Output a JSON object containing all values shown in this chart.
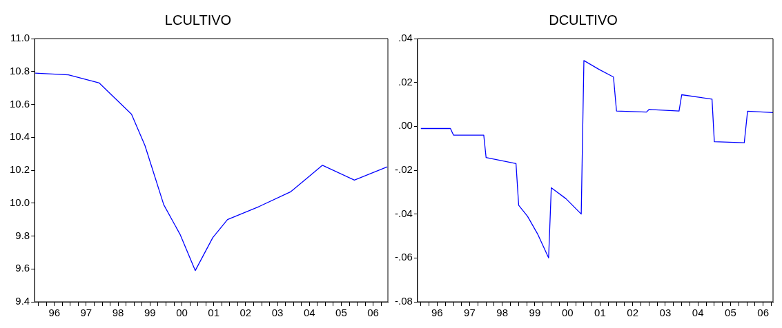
{
  "chart_data": [
    {
      "type": "line",
      "title": "LCULTIVO",
      "marker": "none",
      "series": [
        {
          "color": "#0000ff",
          "x": [
            "1995-11-25",
            "1996-12-10",
            "1997-11-28",
            "1998-12-02",
            "1999-05-05",
            "1999-12-06",
            "2000-06-10",
            "2000-12-02",
            "2001-06-20",
            "2001-12-06",
            "2002-12-06",
            "2003-12-02",
            "2004-11-28",
            "2005-11-28",
            "2006-12-10"
          ],
          "values": [
            10.79,
            10.78,
            10.73,
            10.54,
            10.35,
            9.99,
            9.81,
            9.59,
            9.79,
            9.9,
            9.98,
            10.07,
            10.23,
            10.14,
            10.22
          ]
        }
      ],
      "xlim": [
        "1995-11-18",
        "2006-12-17"
      ],
      "xticks": [
        {
          "value": "1996-01",
          "label": null
        },
        {
          "value": "1996-04",
          "label": null
        },
        {
          "value": "1996-07",
          "label": "96"
        },
        {
          "value": "1996-10",
          "label": null
        },
        {
          "value": "1997-01",
          "label": null
        },
        {
          "value": "1997-04",
          "label": null
        },
        {
          "value": "1997-07",
          "label": "97"
        },
        {
          "value": "1997-10",
          "label": null
        },
        {
          "value": "1998-01",
          "label": null
        },
        {
          "value": "1998-04",
          "label": null
        },
        {
          "value": "1998-07",
          "label": "98"
        },
        {
          "value": "1998-10",
          "label": null
        },
        {
          "value": "1999-01",
          "label": null
        },
        {
          "value": "1999-04",
          "label": null
        },
        {
          "value": "1999-07",
          "label": "99"
        },
        {
          "value": "1999-10",
          "label": null
        },
        {
          "value": "2000-01",
          "label": null
        },
        {
          "value": "2000-04",
          "label": null
        },
        {
          "value": "2000-07",
          "label": "00"
        },
        {
          "value": "2000-10",
          "label": null
        },
        {
          "value": "2001-01",
          "label": null
        },
        {
          "value": "2001-04",
          "label": null
        },
        {
          "value": "2001-07",
          "label": "01"
        },
        {
          "value": "2001-10",
          "label": null
        },
        {
          "value": "2002-01",
          "label": null
        },
        {
          "value": "2002-04",
          "label": null
        },
        {
          "value": "2002-07",
          "label": "02"
        },
        {
          "value": "2002-10",
          "label": null
        },
        {
          "value": "2003-01",
          "label": null
        },
        {
          "value": "2003-04",
          "label": null
        },
        {
          "value": "2003-07",
          "label": "03"
        },
        {
          "value": "2003-10",
          "label": null
        },
        {
          "value": "2004-01",
          "label": null
        },
        {
          "value": "2004-04",
          "label": null
        },
        {
          "value": "2004-07",
          "label": "04"
        },
        {
          "value": "2004-10",
          "label": null
        },
        {
          "value": "2005-01",
          "label": null
        },
        {
          "value": "2005-04",
          "label": null
        },
        {
          "value": "2005-07",
          "label": "05"
        },
        {
          "value": "2005-10",
          "label": null
        },
        {
          "value": "2006-01",
          "label": null
        },
        {
          "value": "2006-04",
          "label": null
        },
        {
          "value": "2006-07",
          "label": "06"
        },
        {
          "value": "2006-10",
          "label": null
        }
      ],
      "ylim": [
        9.4,
        11.0
      ],
      "yticks": [
        {
          "value": 9.4,
          "label": "9.4"
        },
        {
          "value": 9.6,
          "label": "9.6"
        },
        {
          "value": 9.8,
          "label": "9.8"
        },
        {
          "value": 10.0,
          "label": "10.0"
        },
        {
          "value": 10.2,
          "label": "10.2"
        },
        {
          "value": 10.4,
          "label": "10.4"
        },
        {
          "value": 10.6,
          "label": "10.6"
        },
        {
          "value": 10.8,
          "label": "10.8"
        },
        {
          "value": 11.0,
          "label": "11.0"
        }
      ]
    },
    {
      "type": "line",
      "title": "DCULTIVO",
      "marker": "none",
      "series": [
        {
          "color": "#0000ff",
          "x": [
            "1996-01-01",
            "1996-11-28",
            "1997-01-01",
            "1997-12-06",
            "1998-01-01",
            "1998-12-02",
            "1999-01-01",
            "1999-04-10",
            "1999-07-31",
            "1999-12-02",
            "2000-01-01",
            "2000-06-14",
            "2000-12-02",
            "2001-01-01",
            "2001-06-18",
            "2001-11-28",
            "2002-01-01",
            "2002-12-02",
            "2003-01-01",
            "2003-12-02",
            "2004-01-01",
            "2004-12-06",
            "2005-01-01",
            "2005-12-02",
            "2006-01-08",
            "2006-10-20"
          ],
          "values": [
            -0.001,
            -0.001,
            -0.004,
            -0.004,
            -0.0142,
            -0.017,
            -0.036,
            -0.041,
            -0.049,
            -0.06,
            -0.028,
            -0.033,
            -0.04,
            0.03,
            0.026,
            0.0225,
            0.007,
            0.0065,
            0.0077,
            0.007,
            0.0144,
            0.0124,
            -0.007,
            -0.0075,
            0.0069,
            0.0063
          ]
        }
      ],
      "xlim": [
        "1995-11-24",
        "2006-10-20"
      ],
      "xticks": [
        {
          "value": "1996-01",
          "label": null
        },
        {
          "value": "1996-04",
          "label": null
        },
        {
          "value": "1996-07",
          "label": "96"
        },
        {
          "value": "1996-10",
          "label": null
        },
        {
          "value": "1997-01",
          "label": null
        },
        {
          "value": "1997-04",
          "label": null
        },
        {
          "value": "1997-07",
          "label": "97"
        },
        {
          "value": "1997-10",
          "label": null
        },
        {
          "value": "1998-01",
          "label": null
        },
        {
          "value": "1998-04",
          "label": null
        },
        {
          "value": "1998-07",
          "label": "98"
        },
        {
          "value": "1998-10",
          "label": null
        },
        {
          "value": "1999-01",
          "label": null
        },
        {
          "value": "1999-04",
          "label": null
        },
        {
          "value": "1999-07",
          "label": "99"
        },
        {
          "value": "1999-10",
          "label": null
        },
        {
          "value": "2000-01",
          "label": null
        },
        {
          "value": "2000-04",
          "label": null
        },
        {
          "value": "2000-07",
          "label": "00"
        },
        {
          "value": "2000-10",
          "label": null
        },
        {
          "value": "2001-01",
          "label": null
        },
        {
          "value": "2001-04",
          "label": null
        },
        {
          "value": "2001-07",
          "label": "01"
        },
        {
          "value": "2001-10",
          "label": null
        },
        {
          "value": "2002-01",
          "label": null
        },
        {
          "value": "2002-04",
          "label": null
        },
        {
          "value": "2002-07",
          "label": "02"
        },
        {
          "value": "2002-10",
          "label": null
        },
        {
          "value": "2003-01",
          "label": null
        },
        {
          "value": "2003-04",
          "label": null
        },
        {
          "value": "2003-07",
          "label": "03"
        },
        {
          "value": "2003-10",
          "label": null
        },
        {
          "value": "2004-01",
          "label": null
        },
        {
          "value": "2004-04",
          "label": null
        },
        {
          "value": "2004-07",
          "label": "04"
        },
        {
          "value": "2004-10",
          "label": null
        },
        {
          "value": "2005-01",
          "label": null
        },
        {
          "value": "2005-04",
          "label": null
        },
        {
          "value": "2005-07",
          "label": "05"
        },
        {
          "value": "2005-10",
          "label": null
        },
        {
          "value": "2006-01",
          "label": null
        },
        {
          "value": "2006-04",
          "label": null
        },
        {
          "value": "2006-07",
          "label": "06"
        },
        {
          "value": "2006-10",
          "label": null
        }
      ],
      "ylim": [
        -0.08,
        0.04
      ],
      "yticks": [
        {
          "value": -0.08,
          "label": "-.08"
        },
        {
          "value": -0.06,
          "label": "-.06"
        },
        {
          "value": -0.04,
          "label": "-.04"
        },
        {
          "value": -0.02,
          "label": "-.02"
        },
        {
          "value": 0.0,
          "label": ".00"
        },
        {
          "value": 0.02,
          "label": ".02"
        },
        {
          "value": 0.04,
          "label": ".04"
        }
      ]
    }
  ]
}
